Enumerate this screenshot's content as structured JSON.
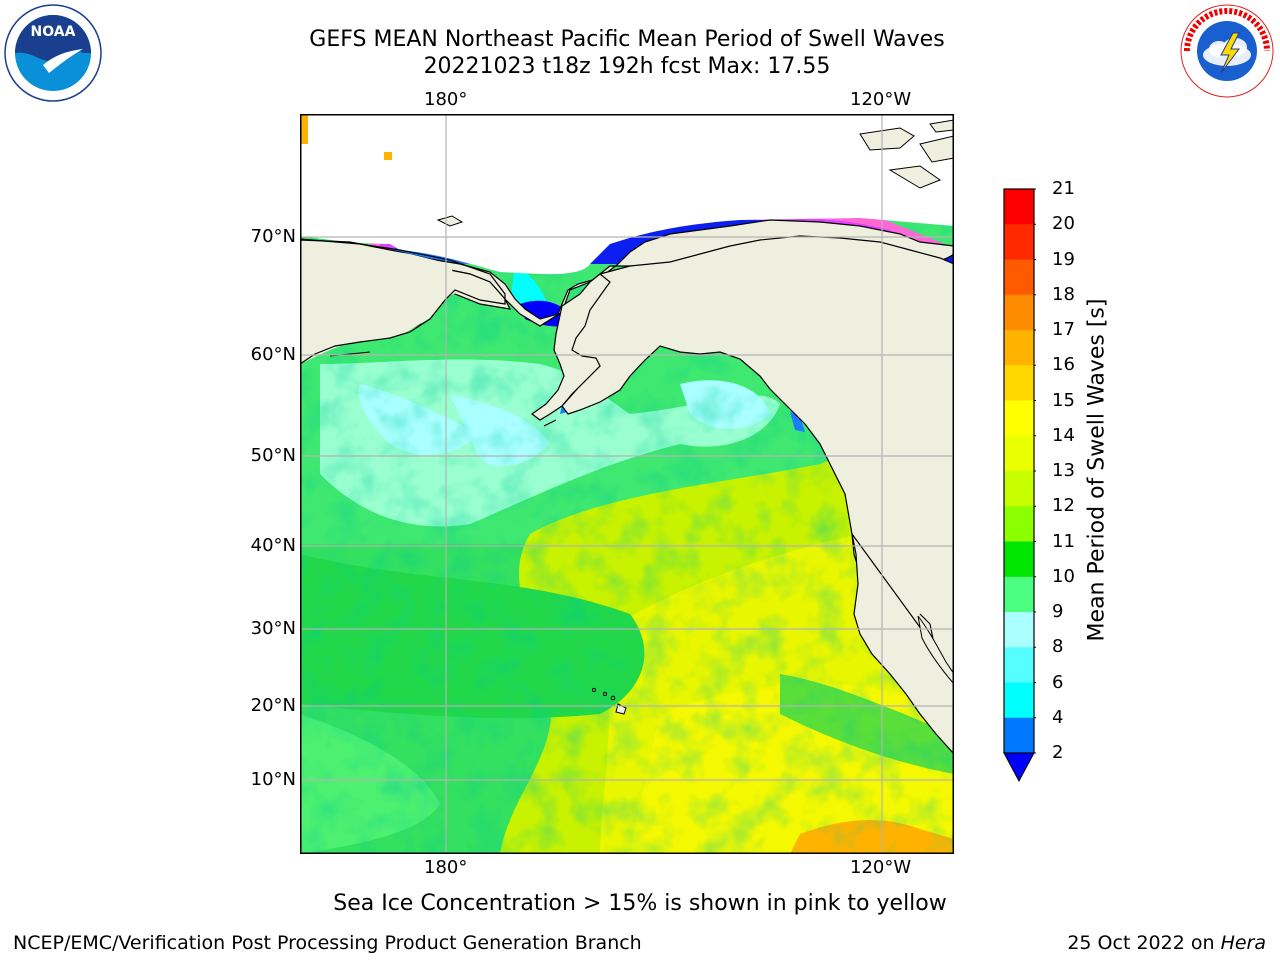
{
  "header": {
    "title_line1": "GEFS MEAN Northeast Pacific Mean Period of Swell Waves",
    "title_line2": "20221023 t18z 192h fcst   Max: 17.55"
  },
  "logos": {
    "left": {
      "name": "NOAA",
      "ring_text": "NATIONAL OCEANIC AND ATMOSPHERIC ADMINISTRATION · U.S. DEPARTMENT OF COMMERCE"
    },
    "right": {
      "ring_text": "NATIONAL WEATHER SERVICE"
    }
  },
  "map": {
    "lon_labels": [
      "180°",
      "120°W"
    ],
    "lat_labels": [
      "70°N",
      "60°N",
      "50°N",
      "40°N",
      "30°N",
      "20°N",
      "10°N"
    ],
    "colors": {
      "land": "#efefdf",
      "coast": "#000000",
      "grid": "#b3b3b3"
    }
  },
  "colorbar": {
    "label": "Mean Period of Swell Waves [s]",
    "ticks": [
      "21",
      "20",
      "19",
      "18",
      "17",
      "16",
      "15",
      "14",
      "13",
      "12",
      "11",
      "10",
      "9",
      "8",
      "6",
      "4",
      "2"
    ],
    "colors_top_to_bottom": [
      "#ff0000",
      "#ff2a00",
      "#ff5a00",
      "#ff8c00",
      "#ffb300",
      "#ffd800",
      "#ffff00",
      "#eaff00",
      "#c8ff00",
      "#8cff00",
      "#00e600",
      "#4dff80",
      "#aaffff",
      "#55ffff",
      "#00ffff",
      "#0077ff"
    ],
    "extend_color": "#0000ff"
  },
  "caption": "Sea Ice Concentration > 15% is shown in pink to yellow",
  "footer": {
    "left": "NCEP/EMC/Verification Post Processing Product Generation Branch",
    "right_prefix": "25 Oct 2022 on ",
    "right_host": "Hera"
  }
}
